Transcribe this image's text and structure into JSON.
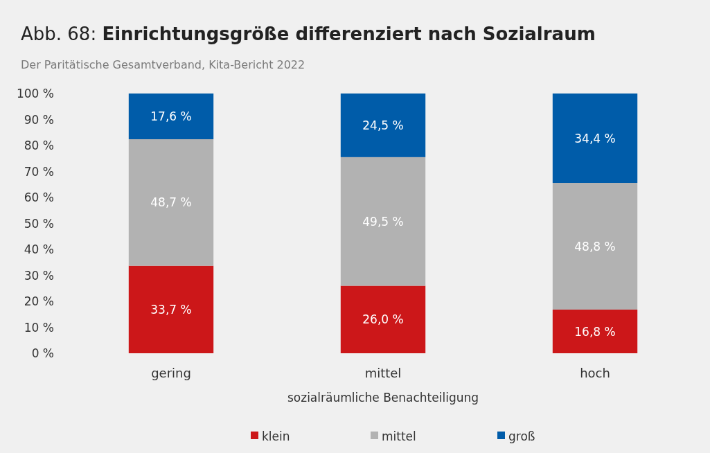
{
  "chart_data": {
    "type": "bar",
    "stacked": true,
    "title": "Abb. 68: Einrichtungsgröße differenziert nach Sozialraum",
    "subtitle": "Der Paritätische Gesamtverband, Kita-Bericht 2022",
    "xlabel": "sozialräumliche Benachteiligung",
    "categories": [
      "gering",
      "mittel",
      "hoch"
    ],
    "series": [
      {
        "name": "klein",
        "color": "#cc1719",
        "values": [
          33.7,
          26.0,
          16.8
        ],
        "value_labels": [
          "33,7 %",
          "26,0 %",
          "16,8 %"
        ]
      },
      {
        "name": "mittel",
        "color": "#b2b2b2",
        "values": [
          48.7,
          49.5,
          48.8
        ],
        "value_labels": [
          "48,7 %",
          "49,5 %",
          "48,8 %"
        ]
      },
      {
        "name": "groß",
        "color": "#005ca9",
        "values": [
          17.6,
          24.5,
          34.4
        ],
        "value_labels": [
          "17,6 %",
          "24,5 %",
          "34,4 %"
        ]
      }
    ],
    "ylim": [
      0,
      100
    ],
    "yticks": [
      {
        "value": 0,
        "label": "0 %"
      },
      {
        "value": 10,
        "label": "10 %"
      },
      {
        "value": 20,
        "label": "20 %"
      },
      {
        "value": 30,
        "label": "30 %"
      },
      {
        "value": 40,
        "label": "40 %"
      },
      {
        "value": 50,
        "label": "50 %"
      },
      {
        "value": 60,
        "label": "60 %"
      },
      {
        "value": 70,
        "label": "70 %"
      },
      {
        "value": 80,
        "label": "80 %"
      },
      {
        "value": 90,
        "label": "90 %"
      },
      {
        "value": 100,
        "label": "100 %"
      }
    ],
    "grid": false,
    "legend": "bottom"
  }
}
